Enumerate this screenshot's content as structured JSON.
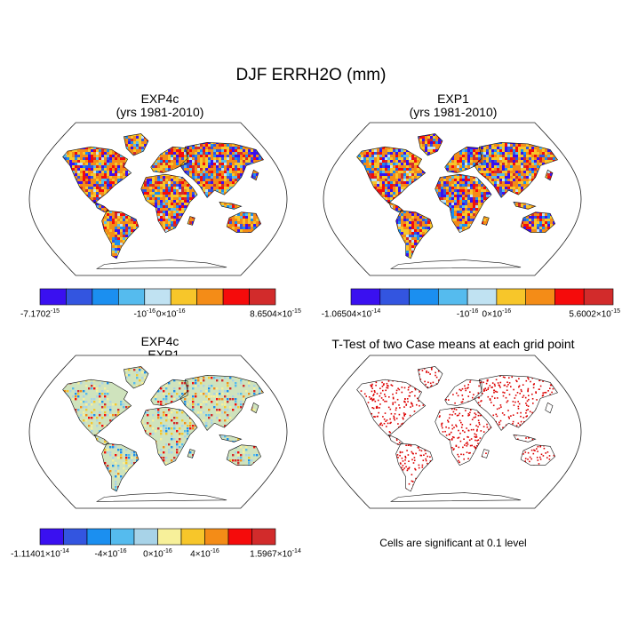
{
  "title": "DJF ERRH2O (mm)",
  "colors": {
    "scale9": [
      "#3a10f0",
      "#3355e0",
      "#1b8ff0",
      "#55bbee",
      "#c0e2f2",
      "#f7c62a",
      "#f48c17",
      "#f50b0b",
      "#d22b2b"
    ],
    "scale10": [
      "#3a10f0",
      "#3355e0",
      "#1b8ff0",
      "#55bbee",
      "#a8d3e8",
      "#f7f09a",
      "#f7c62a",
      "#f48c17",
      "#f50b0b",
      "#d22b2b"
    ],
    "diff_land": "#cfe3bd",
    "ttest_dot": "#dd0000",
    "ocean": "#ffffff"
  },
  "chart_data": [
    {
      "type": "heatmap",
      "panel": "top-left",
      "title": "EXP4c",
      "subtitle": "(yrs 1981-2010)",
      "map_projection": "Robinson",
      "region": "global land",
      "colorbar": {
        "n_colors": 9,
        "labels": [
          {
            "slot": 0,
            "base": "-7.1702",
            "exp": "-15"
          },
          {
            "slot": 4,
            "base": "-10",
            "exp": "-16"
          },
          {
            "slot": 5,
            "base": "0×10",
            "exp": "-16"
          },
          {
            "slot": 9,
            "base": "8.6504×10",
            "exp": "-15"
          }
        ]
      }
    },
    {
      "type": "heatmap",
      "panel": "top-right",
      "title": "EXP1",
      "subtitle": "(yrs 1981-2010)",
      "map_projection": "Robinson",
      "region": "global land",
      "colorbar": {
        "n_colors": 9,
        "labels": [
          {
            "slot": 0,
            "base": "-1.06504×10",
            "exp": "-14"
          },
          {
            "slot": 4,
            "base": "-10",
            "exp": "-16"
          },
          {
            "slot": 5,
            "base": "0×10",
            "exp": "-16"
          },
          {
            "slot": 9,
            "base": "5.6002×10",
            "exp": "-15"
          }
        ]
      }
    },
    {
      "type": "heatmap",
      "panel": "bottom-left",
      "title": "EXP4c",
      "subtitle": "- EXP1",
      "map_projection": "Robinson",
      "region": "global land",
      "colorbar": {
        "n_colors": 10,
        "labels": [
          {
            "slot": 0,
            "base": "-1.11401×10",
            "exp": "-14"
          },
          {
            "slot": 3,
            "base": "-4×10",
            "exp": "-16"
          },
          {
            "slot": 5,
            "base": "0×10",
            "exp": "-16"
          },
          {
            "slot": 7,
            "base": "4×10",
            "exp": "-16"
          },
          {
            "slot": 10,
            "base": "1.5967×10",
            "exp": "-14"
          }
        ]
      }
    },
    {
      "type": "scatter",
      "panel": "bottom-right",
      "title": "T-Test of two Case means at each grid point",
      "map_projection": "Robinson",
      "region": "global land",
      "footnote": "Cells are significant at 0.1 level"
    }
  ]
}
